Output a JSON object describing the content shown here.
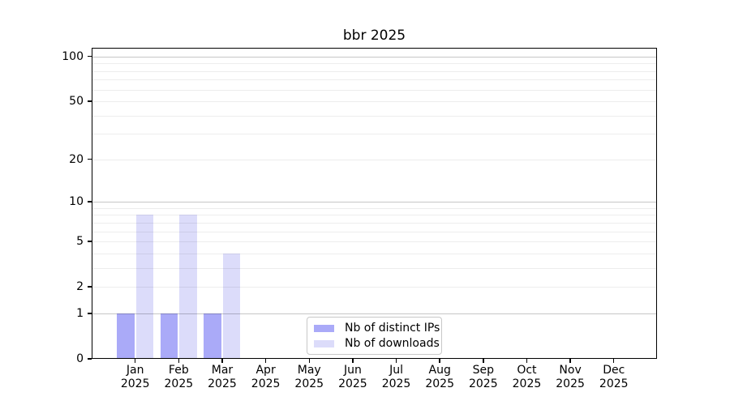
{
  "chart_data": {
    "type": "bar",
    "title": "bbr 2025",
    "categories": [
      "Jan",
      "Feb",
      "Mar",
      "Apr",
      "May",
      "Jun",
      "Jul",
      "Aug",
      "Sep",
      "Oct",
      "Nov",
      "Dec"
    ],
    "category_sub_label": "2025",
    "series": [
      {
        "name": "Nb of distinct IPs",
        "color": "#aaaaf8",
        "values": [
          1,
          1,
          1,
          0,
          0,
          0,
          0,
          0,
          0,
          0,
          0,
          0
        ]
      },
      {
        "name": "Nb of downloads",
        "color": "#dcdcfa",
        "values": [
          8,
          8,
          4,
          0,
          0,
          0,
          0,
          0,
          0,
          0,
          0,
          0
        ]
      }
    ],
    "yaxis": {
      "scale": "log1p",
      "tick_values": [
        0,
        1,
        2,
        5,
        10,
        20,
        50,
        100
      ],
      "major_grid_values": [
        1,
        10,
        100
      ],
      "minor_grid_values": [
        2,
        3,
        4,
        5,
        6,
        7,
        8,
        9,
        20,
        30,
        40,
        50,
        60,
        70,
        80,
        90
      ],
      "ylim": [
        0,
        113
      ]
    },
    "xlabel": "",
    "ylabel": "",
    "grid": true,
    "legend_position": "lower center",
    "legend_items": [
      "Nb of distinct IPs",
      "Nb of downloads"
    ],
    "axis_color": "#000000",
    "background_color": "#ffffff"
  }
}
